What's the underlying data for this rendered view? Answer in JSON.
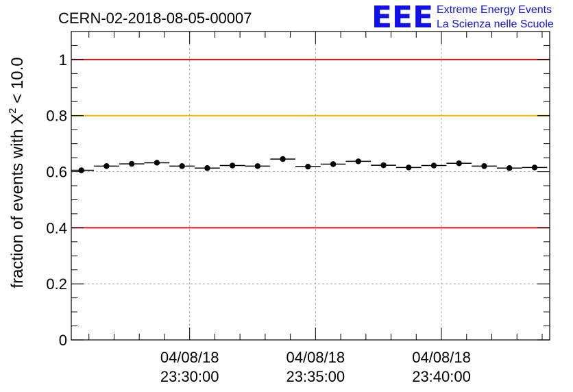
{
  "chart_data": {
    "type": "scatter",
    "title": "CERN-02-2018-08-05-00007",
    "ylabel_prefix": "fraction of events with ",
    "ylabel_symbol": "X",
    "ylabel_sup": "2",
    "ylabel_suffix": " < 10.0",
    "xlabel": "",
    "ylim": [
      0,
      1.1
    ],
    "yticks": [
      "0",
      "0.2",
      "0.4",
      "0.6",
      "0.8",
      "1"
    ],
    "xticks": [
      {
        "line1": "04/08/18",
        "line2": "23:30:00",
        "minutes": 30
      },
      {
        "line1": "04/08/18",
        "line2": "23:35:00",
        "minutes": 35
      },
      {
        "line1": "04/08/18",
        "line2": "23:40:00",
        "minutes": 40
      }
    ],
    "xlim_minutes": [
      25.3,
      44.3
    ],
    "grid": true,
    "reference_lines": [
      {
        "value": 1.0,
        "color": "#e01010"
      },
      {
        "value": 0.8,
        "color": "#f5b800"
      },
      {
        "value": 0.4,
        "color": "#e01010"
      }
    ],
    "point_color": "#000000",
    "bin_width_minutes": 1,
    "points": [
      {
        "minutes": 25.7,
        "value": 0.605
      },
      {
        "minutes": 26.7,
        "value": 0.62
      },
      {
        "minutes": 27.7,
        "value": 0.628
      },
      {
        "minutes": 28.7,
        "value": 0.632
      },
      {
        "minutes": 29.7,
        "value": 0.62
      },
      {
        "minutes": 30.7,
        "value": 0.613
      },
      {
        "minutes": 31.7,
        "value": 0.622
      },
      {
        "minutes": 32.7,
        "value": 0.62
      },
      {
        "minutes": 33.7,
        "value": 0.645
      },
      {
        "minutes": 34.7,
        "value": 0.618
      },
      {
        "minutes": 35.7,
        "value": 0.627
      },
      {
        "minutes": 36.7,
        "value": 0.637
      },
      {
        "minutes": 37.7,
        "value": 0.623
      },
      {
        "minutes": 38.7,
        "value": 0.615
      },
      {
        "minutes": 39.7,
        "value": 0.622
      },
      {
        "minutes": 40.7,
        "value": 0.63
      },
      {
        "minutes": 41.7,
        "value": 0.62
      },
      {
        "minutes": 42.7,
        "value": 0.613
      },
      {
        "minutes": 43.7,
        "value": 0.615
      }
    ]
  },
  "logo": {
    "mark": "EEE",
    "line1": "Extreme Energy Events",
    "line2": "La Scienza nelle Scuole",
    "color": "#1010e8"
  }
}
